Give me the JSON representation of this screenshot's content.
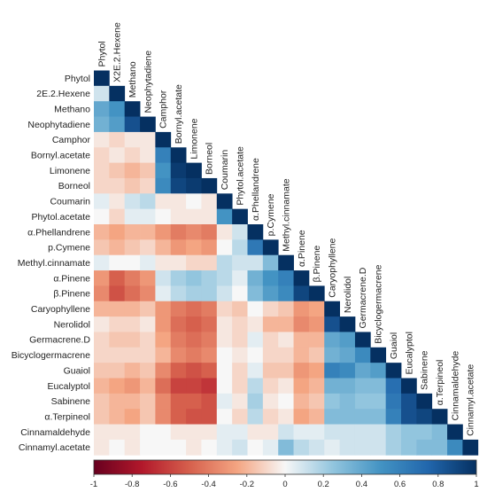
{
  "chart_data": {
    "type": "heatmap",
    "layout": "lower-triangle",
    "variables": [
      "Phytol",
      "X.2E.2.Hexene",
      "Methano",
      "Neophytadiene",
      "Camphor",
      "Bornyl.acetate",
      "Limonene",
      "Borneol",
      "Coumarin",
      "Phytol.acetate",
      "α.Phellandrene",
      "p.Cymene",
      "Methyl.cinnamate",
      "α.Pinene",
      "β.Pinene",
      "Caryophyllene",
      "Nerolidol",
      "Germacrene.D",
      "Bicyclogermacrene",
      "Guaiol",
      "Eucalyptol",
      "Sabinene",
      "α.Terpineol",
      "Cinnamaldehyde",
      "Cinnamyl.acetate"
    ],
    "row_labels": [
      "Phytol",
      "2E.2.Hexene",
      "Methano",
      "Neophytadiene",
      "Camphor",
      "Bornyl.acetate",
      "Limonene",
      "Borneol",
      "Coumarin",
      "Phytol.acetate",
      "α.Phellandrene",
      "p.Cymene",
      "Methyl.cinnamate",
      "α.Pinene",
      "β.Pinene",
      "Caryophyllene",
      "Nerolidol",
      "Germacrene.D",
      "Bicyclogermacrene",
      "Guaiol",
      "Eucalyptol",
      "Sabinene",
      "α.Terpineol",
      "Cinnamaldehyde",
      "Cinnamyl.acetate"
    ],
    "column_labels": [
      "Phytol",
      "X2E.2.Hexene",
      "Methano",
      "Neophytadiene",
      "Camphor",
      "Bornyl.acetate",
      "Limonene",
      "Borneol",
      "Coumarin",
      "Phytol.acetate",
      "α.Phellandrene",
      "p.Cymene",
      "Methyl.cinnamate",
      "α.Pinene",
      "β.Pinene",
      "Caryophyllene",
      "Nerolidol",
      "Germacrene.D",
      "Bicyclogermacrene",
      "Guaiol",
      "Eucalyptol",
      "Sabinene",
      "α.Terpineol",
      "Cinnamaldehyde",
      "Cinnamyl.acetate"
    ],
    "matrix": [
      [
        1
      ],
      [
        0.1,
        1
      ],
      [
        0.4,
        0.5,
        1
      ],
      [
        0.35,
        0.45,
        0.85,
        1
      ],
      [
        -0.05,
        -0.1,
        -0.05,
        -0.05,
        1
      ],
      [
        -0.1,
        -0.05,
        -0.1,
        -0.05,
        0.6,
        1
      ],
      [
        -0.1,
        -0.15,
        -0.2,
        -0.15,
        0.5,
        0.95,
        1
      ],
      [
        -0.1,
        -0.1,
        -0.15,
        -0.1,
        0.55,
        0.9,
        0.95,
        1
      ],
      [
        0.05,
        -0.05,
        0.1,
        0.15,
        -0.05,
        -0.05,
        0.0,
        -0.05,
        1
      ],
      [
        0.0,
        -0.1,
        0.05,
        0.05,
        0.0,
        -0.05,
        -0.05,
        -0.05,
        0.5,
        1
      ],
      [
        -0.2,
        -0.25,
        -0.2,
        -0.2,
        -0.3,
        -0.4,
        -0.35,
        -0.4,
        -0.05,
        0.1,
        1
      ],
      [
        -0.15,
        -0.2,
        -0.15,
        -0.1,
        -0.2,
        -0.3,
        -0.25,
        -0.3,
        0.0,
        0.15,
        0.65,
        1
      ],
      [
        0.05,
        0.0,
        0.0,
        0.05,
        -0.05,
        -0.05,
        -0.1,
        -0.1,
        0.15,
        0.1,
        0.1,
        0.3,
        1
      ],
      [
        -0.3,
        -0.5,
        -0.4,
        -0.3,
        0.1,
        0.2,
        0.25,
        0.2,
        0.15,
        0.05,
        0.35,
        0.5,
        0.6,
        1
      ],
      [
        -0.35,
        -0.55,
        -0.45,
        -0.35,
        0.05,
        0.15,
        0.2,
        0.2,
        0.1,
        0.0,
        0.3,
        0.45,
        0.55,
        0.9,
        1
      ],
      [
        -0.2,
        -0.2,
        -0.2,
        -0.15,
        -0.3,
        -0.4,
        -0.45,
        -0.4,
        -0.1,
        -0.15,
        0.0,
        -0.1,
        -0.15,
        -0.3,
        -0.25,
        1
      ],
      [
        -0.05,
        -0.1,
        -0.1,
        -0.05,
        -0.3,
        -0.45,
        -0.5,
        -0.45,
        -0.05,
        -0.1,
        -0.05,
        -0.2,
        -0.2,
        -0.35,
        -0.3,
        0.85,
        1
      ],
      [
        -0.1,
        -0.15,
        -0.15,
        -0.1,
        -0.25,
        -0.4,
        -0.45,
        -0.4,
        -0.05,
        -0.1,
        0.05,
        -0.1,
        -0.05,
        -0.2,
        -0.2,
        0.4,
        0.45,
        1
      ],
      [
        -0.1,
        -0.1,
        -0.1,
        -0.1,
        -0.2,
        -0.35,
        -0.4,
        -0.35,
        0.0,
        -0.05,
        0.0,
        -0.1,
        -0.1,
        -0.2,
        -0.15,
        0.35,
        0.4,
        0.55,
        1
      ],
      [
        -0.15,
        -0.15,
        -0.2,
        -0.15,
        -0.35,
        -0.5,
        -0.55,
        -0.5,
        0.0,
        -0.1,
        0.05,
        -0.15,
        -0.15,
        -0.3,
        -0.25,
        0.6,
        0.55,
        0.4,
        0.45,
        1
      ],
      [
        -0.2,
        -0.25,
        -0.3,
        -0.2,
        -0.45,
        -0.6,
        -0.6,
        -0.65,
        0.0,
        -0.1,
        0.15,
        -0.1,
        -0.05,
        -0.25,
        -0.2,
        0.35,
        0.35,
        0.3,
        0.3,
        0.7,
        1
      ],
      [
        -0.15,
        -0.2,
        -0.2,
        -0.15,
        -0.35,
        -0.5,
        -0.5,
        -0.55,
        0.05,
        -0.05,
        0.2,
        -0.05,
        0.0,
        -0.2,
        -0.15,
        0.25,
        0.3,
        0.25,
        0.25,
        0.65,
        0.85,
        1
      ],
      [
        -0.15,
        -0.2,
        -0.25,
        -0.15,
        -0.35,
        -0.5,
        -0.55,
        -0.55,
        0.0,
        -0.1,
        0.15,
        -0.1,
        -0.05,
        -0.25,
        -0.2,
        0.3,
        0.3,
        0.3,
        0.3,
        0.6,
        0.85,
        0.9,
        1
      ],
      [
        -0.05,
        -0.05,
        -0.05,
        0.0,
        0.0,
        -0.05,
        -0.05,
        -0.05,
        0.05,
        0.05,
        -0.05,
        -0.05,
        0.1,
        0.05,
        0.05,
        0.1,
        0.1,
        0.1,
        0.1,
        0.2,
        0.25,
        0.25,
        0.3,
        1
      ],
      [
        -0.05,
        0.0,
        -0.05,
        0.0,
        0.0,
        0.0,
        -0.05,
        0.0,
        0.05,
        0.1,
        0.0,
        0.05,
        0.3,
        0.15,
        0.1,
        0.05,
        0.1,
        0.1,
        0.1,
        0.2,
        0.25,
        0.3,
        0.3,
        0.55,
        1
      ]
    ],
    "colorbar": {
      "range": [
        -1,
        1
      ],
      "ticks": [
        "-1",
        "-0.8",
        "-0.6",
        "-0.4",
        "-0.2",
        "0",
        "0.2",
        "0.4",
        "0.6",
        "0.8",
        "1"
      ],
      "stops": [
        {
          "value": -1,
          "color": "#67001f"
        },
        {
          "value": -0.75,
          "color": "#b2182b"
        },
        {
          "value": -0.5,
          "color": "#d6604d"
        },
        {
          "value": -0.25,
          "color": "#f4a582"
        },
        {
          "value": 0,
          "color": "#f7f7f7"
        },
        {
          "value": 0.25,
          "color": "#92c5de"
        },
        {
          "value": 0.5,
          "color": "#4393c3"
        },
        {
          "value": 0.75,
          "color": "#2166ac"
        },
        {
          "value": 1,
          "color": "#053061"
        }
      ]
    },
    "title": "",
    "xlabel": "",
    "ylabel": ""
  }
}
